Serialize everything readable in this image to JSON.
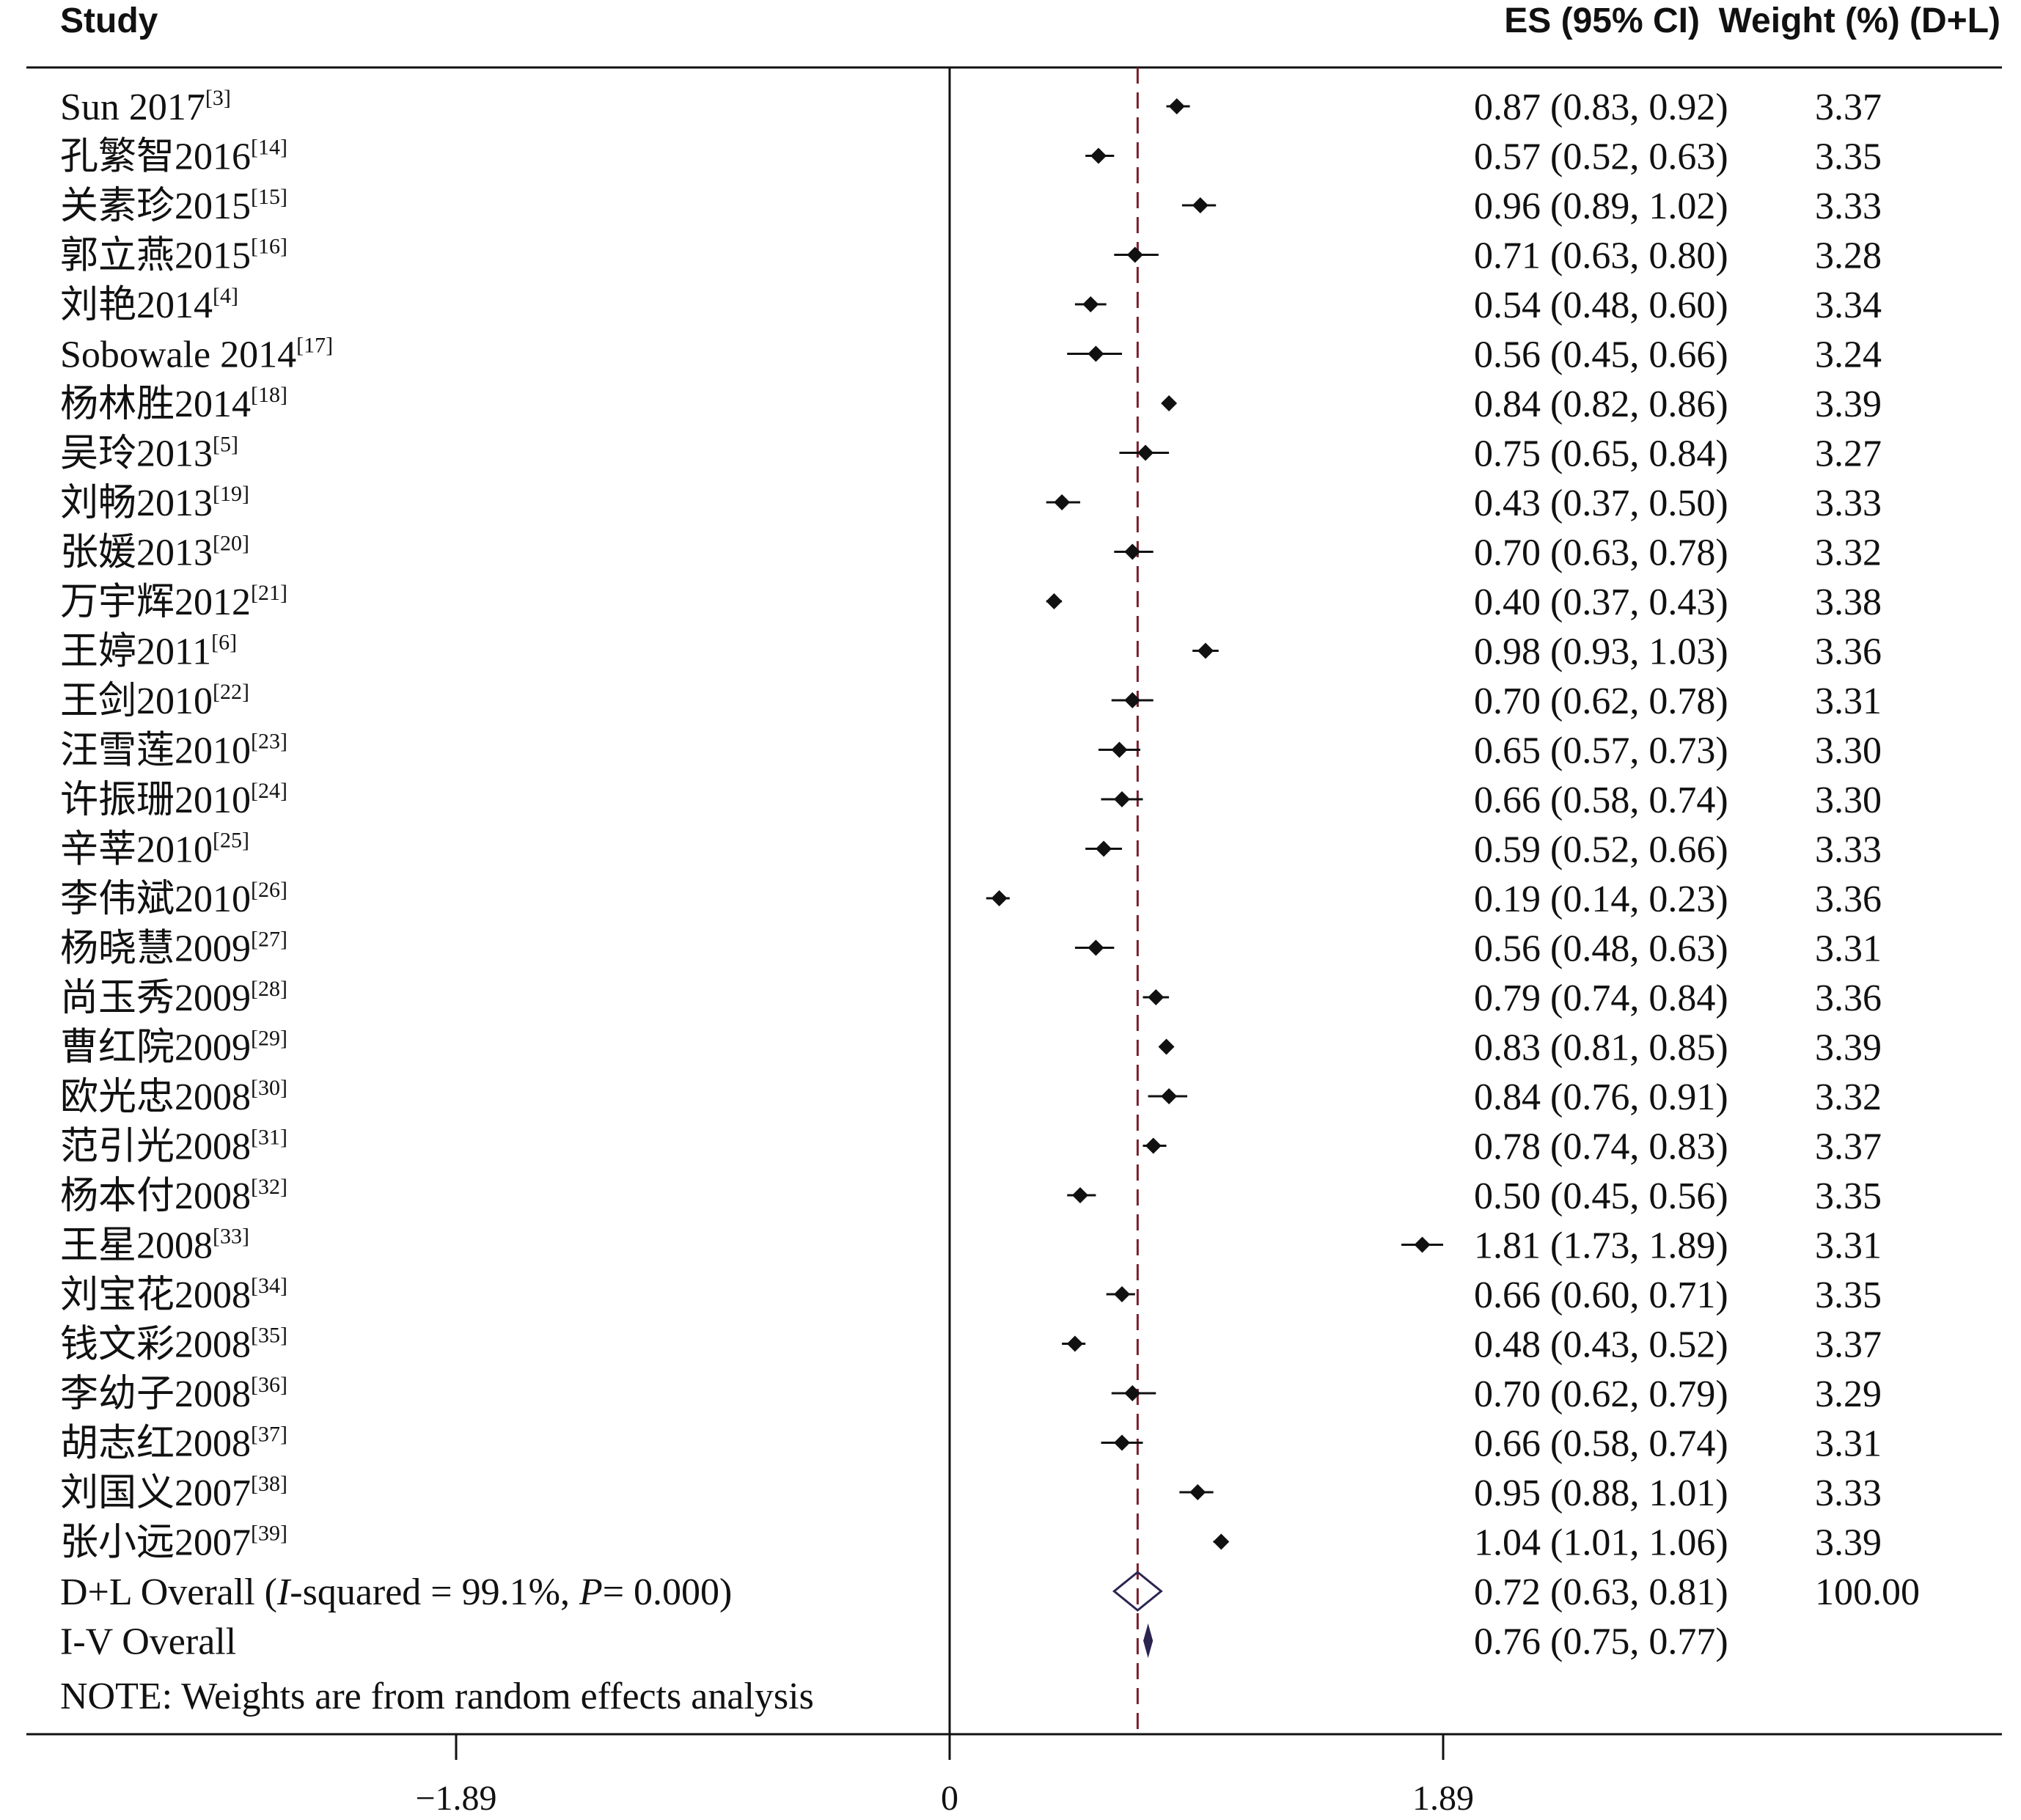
{
  "header": {
    "study_label": "Study",
    "es_label": "ES (95% CI)",
    "weight_label": "Weight (%) (D+L)"
  },
  "chart_data": {
    "type": "forest",
    "xticks": [
      -1.89,
      0,
      1.89
    ],
    "xtick_labels": [
      "−1.89",
      "0",
      "1.89"
    ],
    "xlim": [
      -3.6,
      4.0
    ],
    "reference_line": 0.72,
    "colors": {
      "marker": "#111111",
      "reference": "#7a1f2e",
      "overall": "#2b2450",
      "axis": "#111111"
    },
    "studies": [
      {
        "name": "Sun 2017",
        "ref": "[3]",
        "es": 0.87,
        "lo": 0.83,
        "hi": 0.92,
        "es_text": "0.87 (0.83, 0.92)",
        "weight": "3.37"
      },
      {
        "name": "孔繁智2016",
        "ref": "[14]",
        "es": 0.57,
        "lo": 0.52,
        "hi": 0.63,
        "es_text": "0.57 (0.52, 0.63)",
        "weight": "3.35"
      },
      {
        "name": "关素珍2015",
        "ref": "[15]",
        "es": 0.96,
        "lo": 0.89,
        "hi": 1.02,
        "es_text": "0.96 (0.89, 1.02)",
        "weight": "3.33"
      },
      {
        "name": "郭立燕2015",
        "ref": "[16]",
        "es": 0.71,
        "lo": 0.63,
        "hi": 0.8,
        "es_text": "0.71 (0.63, 0.80)",
        "weight": "3.28"
      },
      {
        "name": "刘艳2014",
        "ref": "[4]",
        "es": 0.54,
        "lo": 0.48,
        "hi": 0.6,
        "es_text": "0.54 (0.48, 0.60)",
        "weight": "3.34"
      },
      {
        "name": "Sobowale 2014",
        "ref": "[17]",
        "es": 0.56,
        "lo": 0.45,
        "hi": 0.66,
        "es_text": "0.56 (0.45, 0.66)",
        "weight": "3.24"
      },
      {
        "name": "杨林胜2014",
        "ref": "[18]",
        "es": 0.84,
        "lo": 0.82,
        "hi": 0.86,
        "es_text": "0.84 (0.82, 0.86)",
        "weight": "3.39"
      },
      {
        "name": "吴玲2013",
        "ref": "[5]",
        "es": 0.75,
        "lo": 0.65,
        "hi": 0.84,
        "es_text": "0.75 (0.65, 0.84)",
        "weight": "3.27"
      },
      {
        "name": "刘畅2013",
        "ref": "[19]",
        "es": 0.43,
        "lo": 0.37,
        "hi": 0.5,
        "es_text": "0.43 (0.37, 0.50)",
        "weight": "3.33"
      },
      {
        "name": "张媛2013",
        "ref": "[20]",
        "es": 0.7,
        "lo": 0.63,
        "hi": 0.78,
        "es_text": "0.70 (0.63, 0.78)",
        "weight": "3.32"
      },
      {
        "name": "万宇辉2012",
        "ref": "[21]",
        "es": 0.4,
        "lo": 0.37,
        "hi": 0.43,
        "es_text": "0.40 (0.37, 0.43)",
        "weight": "3.38"
      },
      {
        "name": "王婷2011",
        "ref": "[6]",
        "es": 0.98,
        "lo": 0.93,
        "hi": 1.03,
        "es_text": "0.98 (0.93, 1.03)",
        "weight": "3.36"
      },
      {
        "name": "王剑2010",
        "ref": "[22]",
        "es": 0.7,
        "lo": 0.62,
        "hi": 0.78,
        "es_text": "0.70 (0.62, 0.78)",
        "weight": "3.31"
      },
      {
        "name": "汪雪莲2010",
        "ref": "[23]",
        "es": 0.65,
        "lo": 0.57,
        "hi": 0.73,
        "es_text": "0.65 (0.57, 0.73)",
        "weight": "3.30"
      },
      {
        "name": "许振珊2010",
        "ref": "[24]",
        "es": 0.66,
        "lo": 0.58,
        "hi": 0.74,
        "es_text": "0.66 (0.58, 0.74)",
        "weight": "3.30"
      },
      {
        "name": "辛莘2010",
        "ref": "[25]",
        "es": 0.59,
        "lo": 0.52,
        "hi": 0.66,
        "es_text": "0.59 (0.52, 0.66)",
        "weight": "3.33"
      },
      {
        "name": "李伟斌2010",
        "ref": "[26]",
        "es": 0.19,
        "lo": 0.14,
        "hi": 0.23,
        "es_text": "0.19 (0.14, 0.23)",
        "weight": "3.36"
      },
      {
        "name": "杨晓慧2009",
        "ref": "[27]",
        "es": 0.56,
        "lo": 0.48,
        "hi": 0.63,
        "es_text": "0.56 (0.48, 0.63)",
        "weight": "3.31"
      },
      {
        "name": "尚玉秀2009",
        "ref": "[28]",
        "es": 0.79,
        "lo": 0.74,
        "hi": 0.84,
        "es_text": "0.79 (0.74, 0.84)",
        "weight": "3.36"
      },
      {
        "name": "曹红院2009",
        "ref": "[29]",
        "es": 0.83,
        "lo": 0.81,
        "hi": 0.85,
        "es_text": "0.83 (0.81, 0.85)",
        "weight": "3.39"
      },
      {
        "name": "欧光忠2008",
        "ref": "[30]",
        "es": 0.84,
        "lo": 0.76,
        "hi": 0.91,
        "es_text": "0.84 (0.76, 0.91)",
        "weight": "3.32"
      },
      {
        "name": "范引光2008",
        "ref": "[31]",
        "es": 0.78,
        "lo": 0.74,
        "hi": 0.83,
        "es_text": "0.78 (0.74, 0.83)",
        "weight": "3.37"
      },
      {
        "name": "杨本付2008",
        "ref": "[32]",
        "es": 0.5,
        "lo": 0.45,
        "hi": 0.56,
        "es_text": "0.50 (0.45, 0.56)",
        "weight": "3.35"
      },
      {
        "name": "王星2008",
        "ref": "[33]",
        "es": 1.81,
        "lo": 1.73,
        "hi": 1.89,
        "es_text": "1.81 (1.73, 1.89)",
        "weight": "3.31"
      },
      {
        "name": "刘宝花2008",
        "ref": "[34]",
        "es": 0.66,
        "lo": 0.6,
        "hi": 0.71,
        "es_text": "0.66 (0.60, 0.71)",
        "weight": "3.35"
      },
      {
        "name": "钱文彩2008",
        "ref": "[35]",
        "es": 0.48,
        "lo": 0.43,
        "hi": 0.52,
        "es_text": "0.48 (0.43, 0.52)",
        "weight": "3.37"
      },
      {
        "name": "李幼子2008",
        "ref": "[36]",
        "es": 0.7,
        "lo": 0.62,
        "hi": 0.79,
        "es_text": "0.70 (0.62, 0.79)",
        "weight": "3.29"
      },
      {
        "name": "胡志红2008",
        "ref": "[37]",
        "es": 0.66,
        "lo": 0.58,
        "hi": 0.74,
        "es_text": "0.66 (0.58, 0.74)",
        "weight": "3.31"
      },
      {
        "name": "刘国义2007",
        "ref": "[38]",
        "es": 0.95,
        "lo": 0.88,
        "hi": 1.01,
        "es_text": "0.95 (0.88, 1.01)",
        "weight": "3.33"
      },
      {
        "name": "张小远2007",
        "ref": "[39]",
        "es": 1.04,
        "lo": 1.01,
        "hi": 1.06,
        "es_text": "1.04 (1.01, 1.06)",
        "weight": "3.39"
      }
    ],
    "overall": [
      {
        "label_prefix": "D+L Overall  (",
        "label_italic1": "I",
        "label_mid": "-squared = 99.1%, ",
        "label_italic2": "P",
        "label_suffix": "= 0.000)",
        "es": 0.72,
        "lo": 0.63,
        "hi": 0.81,
        "es_text": "0.72 (0.63, 0.81)",
        "weight": "100.00",
        "style": "wide"
      },
      {
        "label_prefix": "I-V Overall",
        "label_italic1": "",
        "label_mid": "",
        "label_italic2": "",
        "label_suffix": "",
        "es": 0.76,
        "lo": 0.75,
        "hi": 0.77,
        "es_text": "0.76 (0.75, 0.77)",
        "weight": "",
        "style": "thin"
      }
    ],
    "note": "NOTE: Weights are from random effects analysis"
  }
}
